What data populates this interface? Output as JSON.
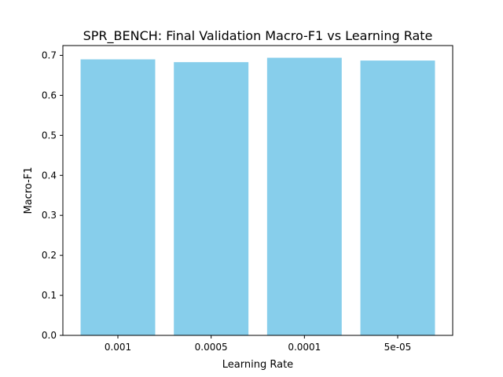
{
  "chart_data": {
    "type": "bar",
    "title": "SPR_BENCH: Final Validation Macro-F1 vs Learning Rate",
    "xlabel": "Learning Rate",
    "ylabel": "Macro-F1",
    "categories": [
      "0.001",
      "0.0005",
      "0.0001",
      "5e-05"
    ],
    "values": [
      0.69,
      0.683,
      0.694,
      0.687
    ],
    "ylim": [
      0,
      0.7245
    ],
    "yticks": [
      "0.0",
      "0.1",
      "0.2",
      "0.3",
      "0.4",
      "0.5",
      "0.6",
      "0.7"
    ],
    "bar_color": "#87CEEB",
    "grid": false,
    "legend": "none"
  }
}
